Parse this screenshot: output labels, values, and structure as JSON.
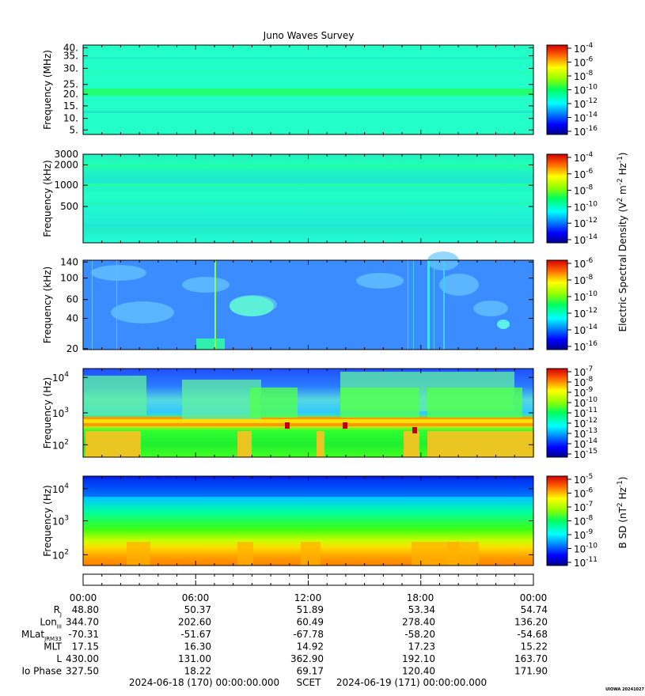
{
  "title": "Juno Waves Survey",
  "panels": [
    {
      "ylabel": "Frequency (MHz)",
      "yticks": [
        "40.",
        "35.",
        "30.",
        "25.",
        "20.",
        "15.",
        "10.",
        "5."
      ],
      "cbar": [
        "-4",
        "-6",
        "-8",
        "-10",
        "-12",
        "-14",
        "-16"
      ]
    },
    {
      "ylabel": "Frequency (kHz)",
      "yticks": [
        "3000",
        "2000",
        "1000",
        "500"
      ],
      "cbar": [
        "-4",
        "-6",
        "-8",
        "-10",
        "-12",
        "-14"
      ]
    },
    {
      "ylabel": "Frequency (kHz)",
      "yticks": [
        "140",
        "100",
        "60",
        "40",
        "20"
      ],
      "cbar": [
        "-6",
        "-8",
        "-10",
        "-12",
        "-14",
        "-16"
      ]
    },
    {
      "ylabel": "Frequency (Hz)",
      "yticks": [
        "4",
        "3",
        "2"
      ],
      "cbar": [
        "-7",
        "-8",
        "-9",
        "-10",
        "-11",
        "-12",
        "-13",
        "-14",
        "-15"
      ]
    },
    {
      "ylabel": "Frequency (Hz)",
      "yticks": [
        "4",
        "3",
        "2"
      ],
      "cbar": [
        "-5",
        "-6",
        "-7",
        "-8",
        "-9",
        "-10",
        "-11"
      ]
    }
  ],
  "cbar_labels": {
    "electric_parts": [
      "Electric Spectral Density (V",
      "2",
      " m",
      "-2",
      " Hz",
      "-1",
      ")"
    ],
    "magnetic_parts": [
      "B SD (nT",
      "2",
      " Hz",
      "-1",
      ")"
    ]
  },
  "xticks": [
    "00:00",
    "06:00",
    "12:00",
    "18:00",
    "00:00"
  ],
  "ephemeris": [
    {
      "label": "R",
      "sub": "J",
      "values": [
        "48.80",
        "50.37",
        "51.89",
        "53.34",
        "54.74"
      ]
    },
    {
      "label": "Lon",
      "sub": "III",
      "values": [
        "344.70",
        "202.60",
        "60.49",
        "278.40",
        "136.20"
      ]
    },
    {
      "label": "MLat",
      "sub": "JRM33",
      "values": [
        "-70.31",
        "-51.67",
        "-67.78",
        "-58.20",
        "-54.68"
      ]
    },
    {
      "label": "MLT",
      "sub": "",
      "values": [
        "17.15",
        "16.30",
        "14.92",
        "17.23",
        "15.22"
      ]
    },
    {
      "label": "L",
      "sub": "",
      "values": [
        "430.00",
        "131.00",
        "362.90",
        "192.10",
        "163.70"
      ]
    },
    {
      "label": "Io Phase",
      "sub": "",
      "values": [
        "327.50",
        "18.22",
        "69.17",
        "120.40",
        "171.90"
      ]
    }
  ],
  "time_range": {
    "start": "2024-06-18 (170) 00:00:00.000",
    "scet": "SCET",
    "end": "2024-06-19 (171) 00:00:00.000"
  },
  "footer_tag": "UIOWA 20241027",
  "colors": {
    "jet_top": "#d00000",
    "jet_bottom": "#0000a0"
  },
  "chart_data": {
    "type": "heatmap",
    "title": "Juno Waves Survey",
    "x_range": [
      "2024-06-18 00:00",
      "2024-06-19 00:00"
    ],
    "panels": [
      {
        "quantity": "Electric Spectral Density",
        "units": "V2 m-2 Hz-1",
        "ylabel": "Frequency (MHz)",
        "yscale": "linear",
        "ylim": [
          3.5,
          41
        ],
        "clim_log10": [
          -16.5,
          -3.5
        ],
        "level": 0.45,
        "band": {
          "freq": 21,
          "level": 0.6
        }
      },
      {
        "quantity": "Electric Spectral Density",
        "units": "V2 m-2 Hz-1",
        "ylabel": "Frequency (kHz)",
        "yscale": "log",
        "ylim": [
          150,
          3000
        ],
        "clim_log10": [
          -15,
          -3.5
        ],
        "level": 0.42
      },
      {
        "quantity": "Electric Spectral Density",
        "units": "V2 m-2 Hz-1",
        "ylabel": "Frequency (kHz)",
        "yscale": "log",
        "ylim": [
          20,
          140
        ],
        "clim_log10": [
          -16,
          -6
        ],
        "level": 0.3
      },
      {
        "quantity": "Electric Spectral Density",
        "units": "V2 m-2 Hz-1",
        "ylabel": "Frequency (Hz)",
        "yscale": "log",
        "ylim": [
          50,
          20000
        ],
        "clim_log10": [
          -15,
          -7
        ],
        "line_freq_hz": 600
      },
      {
        "quantity": "B SD",
        "units": "nT2 Hz-1",
        "ylabel": "Frequency (Hz)",
        "yscale": "log",
        "ylim": [
          50,
          20000
        ],
        "clim_log10": [
          -11,
          -4.5
        ]
      }
    ]
  }
}
